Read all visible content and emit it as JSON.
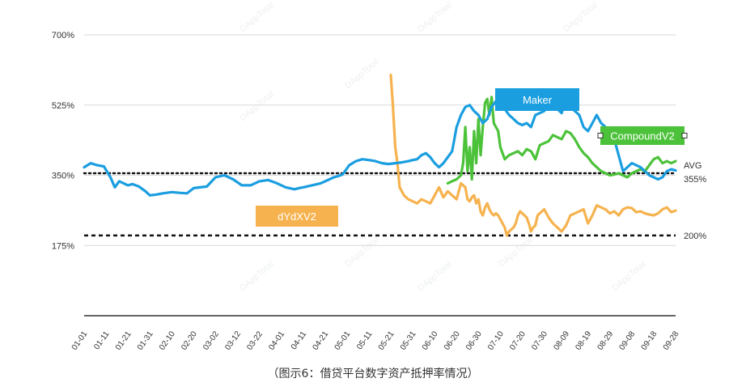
{
  "caption": "（图示6：借贷平台数字资产抵押率情况）",
  "chart_data": {
    "type": "line",
    "ylim": [
      0,
      700
    ],
    "y_ticks": [
      {
        "value": 700,
        "label": "700%"
      },
      {
        "value": 525,
        "label": "525%"
      },
      {
        "value": 350,
        "label": "350%"
      },
      {
        "value": 175,
        "label": "175%"
      }
    ],
    "x_ticks": [
      "01-01",
      "01-11",
      "01-21",
      "01-31",
      "02-10",
      "02-20",
      "03-02",
      "03-12",
      "03-22",
      "04-01",
      "04-11",
      "04-21",
      "05-01",
      "05-11",
      "05-21",
      "05-31",
      "06-10",
      "06-20",
      "06-30",
      "07-10",
      "07-20",
      "07-30",
      "08-09",
      "08-19",
      "08-29",
      "09-08",
      "09-18",
      "09-28"
    ],
    "reference_lines": [
      {
        "value": 355,
        "label_top": "AVG",
        "label": "355%",
        "style": "dotted"
      },
      {
        "value": 200,
        "label": "200%",
        "style": "dashed"
      }
    ],
    "series": [
      {
        "name": "Maker",
        "color": "#1a9ee0",
        "x": [
          0,
          3,
          6,
          9,
          12,
          14,
          16,
          18,
          20,
          22,
          25,
          28,
          30,
          33,
          36,
          40,
          44,
          47,
          50,
          53,
          56,
          60,
          64,
          68,
          72,
          76,
          80,
          84,
          88,
          92,
          96,
          98,
          100,
          104,
          108,
          112,
          114,
          116,
          118,
          121,
          124,
          127,
          130,
          133,
          136,
          139,
          142,
          145,
          148,
          150,
          152,
          154,
          156,
          158,
          160,
          162,
          164,
          166,
          168,
          170,
          172,
          174,
          176,
          178,
          180,
          182,
          184,
          186,
          188,
          190,
          192,
          194,
          196,
          198,
          200,
          202,
          204,
          206,
          208,
          210,
          212,
          214,
          216,
          218,
          220,
          222,
          224,
          226,
          228,
          230,
          232,
          234,
          236,
          238,
          240,
          242,
          244,
          246,
          248,
          250,
          252,
          254,
          256,
          258,
          260,
          262,
          264,
          266,
          268,
          270
        ],
        "y": [
          370,
          380,
          375,
          372,
          345,
          320,
          335,
          330,
          325,
          328,
          322,
          310,
          300,
          302,
          305,
          308,
          306,
          305,
          318,
          320,
          322,
          345,
          350,
          340,
          325,
          325,
          335,
          338,
          330,
          320,
          315,
          318,
          320,
          325,
          330,
          340,
          345,
          348,
          352,
          375,
          385,
          390,
          388,
          385,
          380,
          378,
          380,
          382,
          385,
          388,
          390,
          400,
          405,
          395,
          380,
          370,
          380,
          395,
          410,
          470,
          500,
          520,
          525,
          510,
          500,
          480,
          490,
          520,
          535,
          525,
          515,
          500,
          490,
          480,
          475,
          480,
          470,
          500,
          505,
          510,
          530,
          520,
          515,
          505,
          540,
          520,
          510,
          500,
          470,
          460,
          480,
          500,
          480,
          470,
          455,
          440,
          400,
          360,
          370,
          380,
          375,
          370,
          360,
          350,
          345,
          340,
          345,
          360,
          365,
          362
        ]
      },
      {
        "name": "CompoundV2",
        "color": "#4cc23a",
        "x": [
          166,
          168,
          170,
          172,
          173,
          174,
          175,
          176,
          177,
          178,
          179,
          180,
          181,
          182,
          183,
          184,
          185,
          186,
          187,
          188,
          189,
          190,
          192,
          194,
          196,
          198,
          200,
          202,
          204,
          206,
          208,
          210,
          212,
          214,
          216,
          218,
          220,
          222,
          224,
          226,
          228,
          230,
          232,
          234,
          236,
          238,
          240,
          242,
          244,
          246,
          248,
          250,
          252,
          254,
          256,
          258,
          260,
          262,
          264,
          266,
          268,
          270
        ],
        "y": [
          330,
          335,
          340,
          350,
          380,
          470,
          360,
          420,
          340,
          460,
          380,
          490,
          400,
          470,
          530,
          540,
          500,
          545,
          480,
          470,
          460,
          420,
          390,
          400,
          405,
          410,
          400,
          415,
          410,
          390,
          425,
          430,
          435,
          450,
          445,
          440,
          460,
          455,
          440,
          420,
          405,
          395,
          380,
          370,
          360,
          355,
          350,
          352,
          355,
          350,
          345,
          355,
          360,
          365,
          360,
          375,
          390,
          395,
          380,
          385,
          380,
          385
        ]
      },
      {
        "name": "dYdXV2",
        "color": "#f6b24e",
        "x": [
          140,
          141,
          142,
          143,
          144,
          145,
          146,
          147,
          148,
          150,
          152,
          154,
          156,
          158,
          160,
          162,
          164,
          166,
          168,
          170,
          172,
          174,
          175,
          176,
          177,
          178,
          179,
          180,
          181,
          182,
          183,
          184,
          185,
          186,
          187,
          188,
          189,
          190,
          191,
          192,
          193,
          194,
          195,
          196,
          197,
          198,
          199,
          200,
          201,
          202,
          203,
          204,
          205,
          206,
          207,
          208,
          210,
          212,
          214,
          216,
          218,
          220,
          222,
          224,
          226,
          228,
          230,
          232,
          234,
          236,
          238,
          240,
          242,
          244,
          246,
          248,
          250,
          252,
          254,
          256,
          258,
          260,
          262,
          264,
          266,
          268,
          270
        ],
        "y": [
          600,
          520,
          420,
          380,
          320,
          310,
          300,
          295,
          290,
          285,
          280,
          290,
          285,
          280,
          300,
          320,
          295,
          310,
          300,
          290,
          330,
          320,
          290,
          285,
          295,
          300,
          280,
          290,
          260,
          250,
          270,
          280,
          265,
          255,
          250,
          255,
          250,
          240,
          230,
          220,
          200,
          210,
          215,
          220,
          230,
          250,
          260,
          255,
          250,
          245,
          230,
          210,
          220,
          225,
          250,
          255,
          265,
          245,
          230,
          220,
          210,
          225,
          250,
          255,
          260,
          265,
          230,
          250,
          275,
          270,
          265,
          255,
          260,
          250,
          265,
          270,
          268,
          258,
          260,
          255,
          252,
          250,
          255,
          265,
          270,
          258,
          262
        ]
      }
    ]
  }
}
